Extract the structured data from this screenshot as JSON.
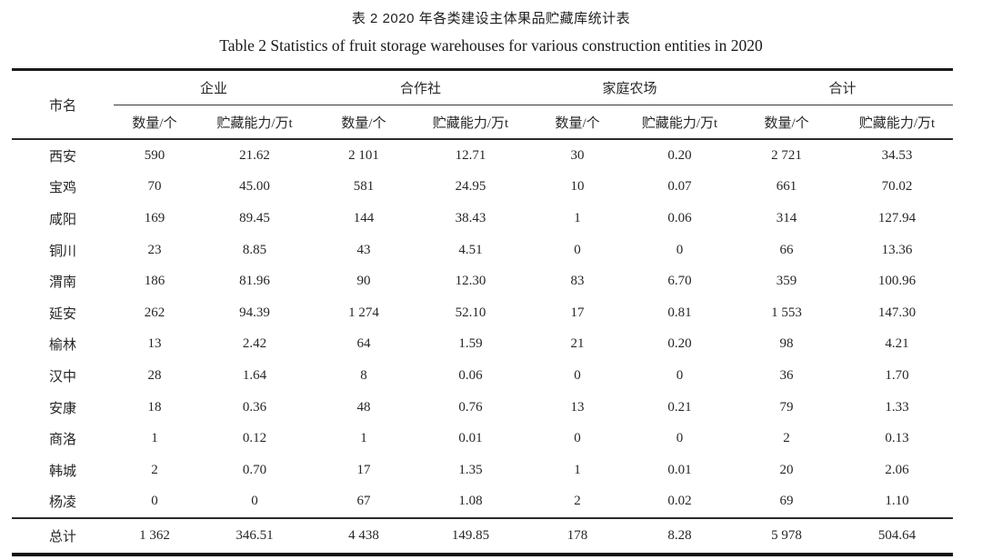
{
  "page": {
    "title_cn": "表 2 2020 年各类建设主体果品贮藏库统计表",
    "title_en": "Table 2 Statistics of fruit storage warehouses for various construction entities in 2020"
  },
  "table": {
    "col_city": "市名",
    "groups": [
      {
        "label": "企业"
      },
      {
        "label": "合作社"
      },
      {
        "label": "家庭农场"
      },
      {
        "label": "合计"
      }
    ],
    "subheaders": {
      "quantity": "数量/个",
      "capacity": "贮藏能力/万t"
    },
    "rows": [
      {
        "cells": [
          "西安",
          "590",
          "21.62",
          "2 101",
          "12.71",
          "30",
          "0.20",
          "2 721",
          "34.53"
        ]
      },
      {
        "cells": [
          "宝鸡",
          "70",
          "45.00",
          "581",
          "24.95",
          "10",
          "0.07",
          "661",
          "70.02"
        ]
      },
      {
        "cells": [
          "咸阳",
          "169",
          "89.45",
          "144",
          "38.43",
          "1",
          "0.06",
          "314",
          "127.94"
        ]
      },
      {
        "cells": [
          "铜川",
          "23",
          "8.85",
          "43",
          "4.51",
          "0",
          "0",
          "66",
          "13.36"
        ]
      },
      {
        "cells": [
          "渭南",
          "186",
          "81.96",
          "90",
          "12.30",
          "83",
          "6.70",
          "359",
          "100.96"
        ]
      },
      {
        "cells": [
          "延安",
          "262",
          "94.39",
          "1 274",
          "52.10",
          "17",
          "0.81",
          "1 553",
          "147.30"
        ]
      },
      {
        "cells": [
          "榆林",
          "13",
          "2.42",
          "64",
          "1.59",
          "21",
          "0.20",
          "98",
          "4.21"
        ]
      },
      {
        "cells": [
          "汉中",
          "28",
          "1.64",
          "8",
          "0.06",
          "0",
          "0",
          "36",
          "1.70"
        ]
      },
      {
        "cells": [
          "安康",
          "18",
          "0.36",
          "48",
          "0.76",
          "13",
          "0.21",
          "79",
          "1.33"
        ]
      },
      {
        "cells": [
          "商洛",
          "1",
          "0.12",
          "1",
          "0.01",
          "0",
          "0",
          "2",
          "0.13"
        ]
      },
      {
        "cells": [
          "韩城",
          "2",
          "0.70",
          "17",
          "1.35",
          "1",
          "0.01",
          "20",
          "2.06"
        ]
      },
      {
        "cells": [
          "杨凌",
          "0",
          "0",
          "67",
          "1.08",
          "2",
          "0.02",
          "69",
          "1.10"
        ]
      }
    ],
    "total": {
      "cells": [
        "总计",
        "1 362",
        "346.51",
        "4 438",
        "149.85",
        "178",
        "8.28",
        "5 978",
        "504.64"
      ]
    }
  },
  "colors": {
    "text": "#262626",
    "rule_heavy": "#1a1a1a",
    "rule_light": "#3a3a3a",
    "background": "#ffffff"
  }
}
